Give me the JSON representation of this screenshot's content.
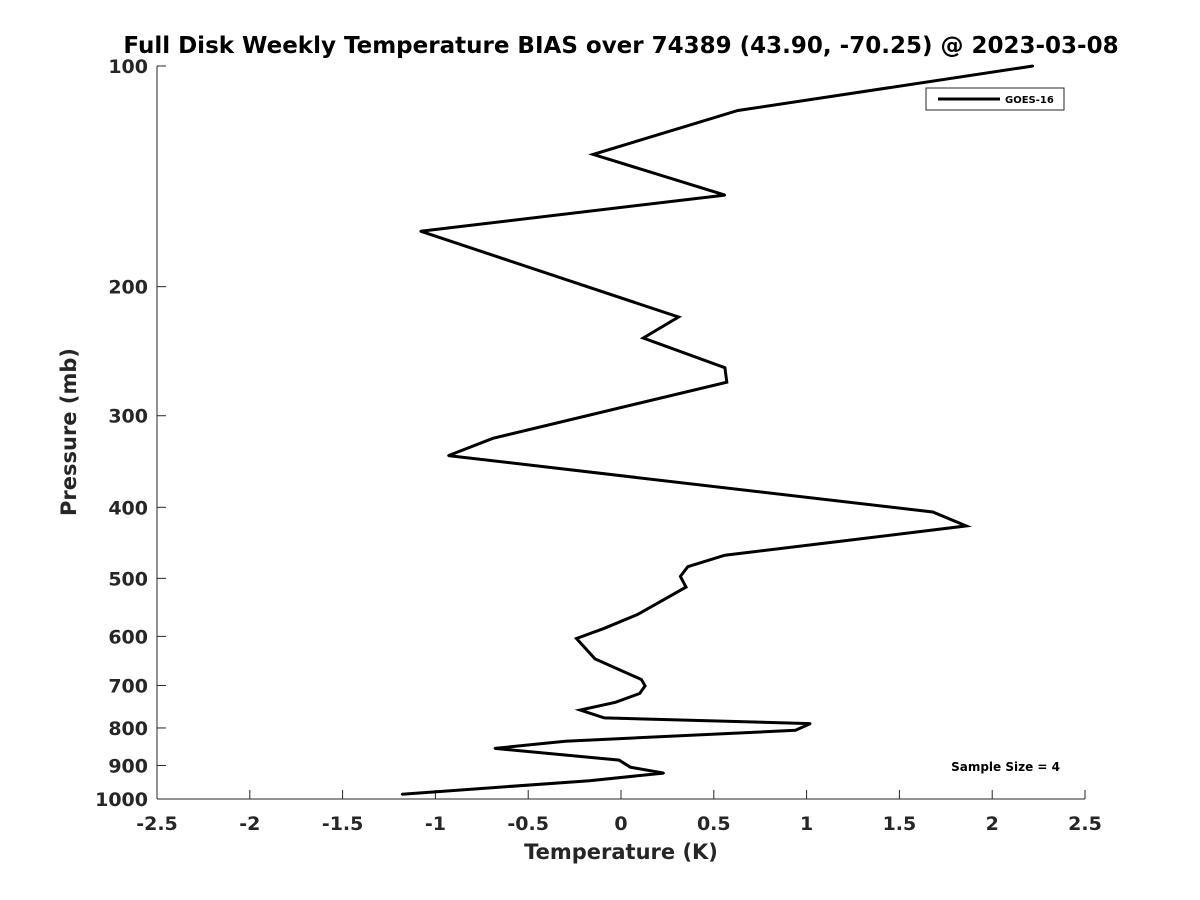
{
  "chart_data": {
    "type": "line",
    "title": "Full Disk Weekly Temperature BIAS over 74389 (43.90, -70.25) @ 2023-03-08",
    "xlabel": "Temperature (K)",
    "ylabel": "Pressure (mb)",
    "xlim": [
      -2.5,
      2.5
    ],
    "ylim": [
      100,
      1000
    ],
    "yscale": "log",
    "y_reversed": true,
    "grid": false,
    "legend_position": "top-right",
    "x_ticks": [
      -2.5,
      -2,
      -1.5,
      -1,
      -0.5,
      0,
      0.5,
      1,
      1.5,
      2,
      2.5
    ],
    "x_tick_labels": [
      "-2.5",
      "-2",
      "-1.5",
      "-1",
      "-0.5",
      "0",
      "0.5",
      "1",
      "1.5",
      "2",
      "2.5"
    ],
    "y_ticks": [
      100,
      200,
      300,
      400,
      500,
      600,
      700,
      800,
      900,
      1000
    ],
    "y_tick_labels": [
      "100",
      "200",
      "300",
      "400",
      "500",
      "600",
      "700",
      "800",
      "900",
      "1000"
    ],
    "series": [
      {
        "name": "GOES-16",
        "color": "#000000",
        "x": [
          2.22,
          0.63,
          -0.15,
          0.56,
          -1.08,
          0.31,
          0.12,
          0.56,
          0.57,
          -0.69,
          -0.93,
          1.68,
          1.86,
          1.15,
          0.56,
          0.36,
          0.32,
          0.35,
          0.09,
          -0.09,
          -0.24,
          -0.14,
          0.11,
          0.13,
          0.1,
          -0.03,
          -0.22,
          -0.09,
          1.02,
          0.94,
          -0.3,
          -0.68,
          -0.01,
          0.05,
          0.23,
          -0.17,
          -1.18
        ],
        "y": [
          100,
          115,
          132,
          150,
          168,
          220,
          235,
          258,
          270,
          322,
          340,
          406,
          424,
          446,
          465,
          482,
          497,
          514,
          560,
          585,
          604,
          644,
          687,
          701,
          718,
          738,
          756,
          775,
          789,
          806,
          834,
          853,
          885,
          905,
          922,
          944,
          985
        ]
      }
    ],
    "annotations": [
      "Sample Size = 4"
    ]
  }
}
